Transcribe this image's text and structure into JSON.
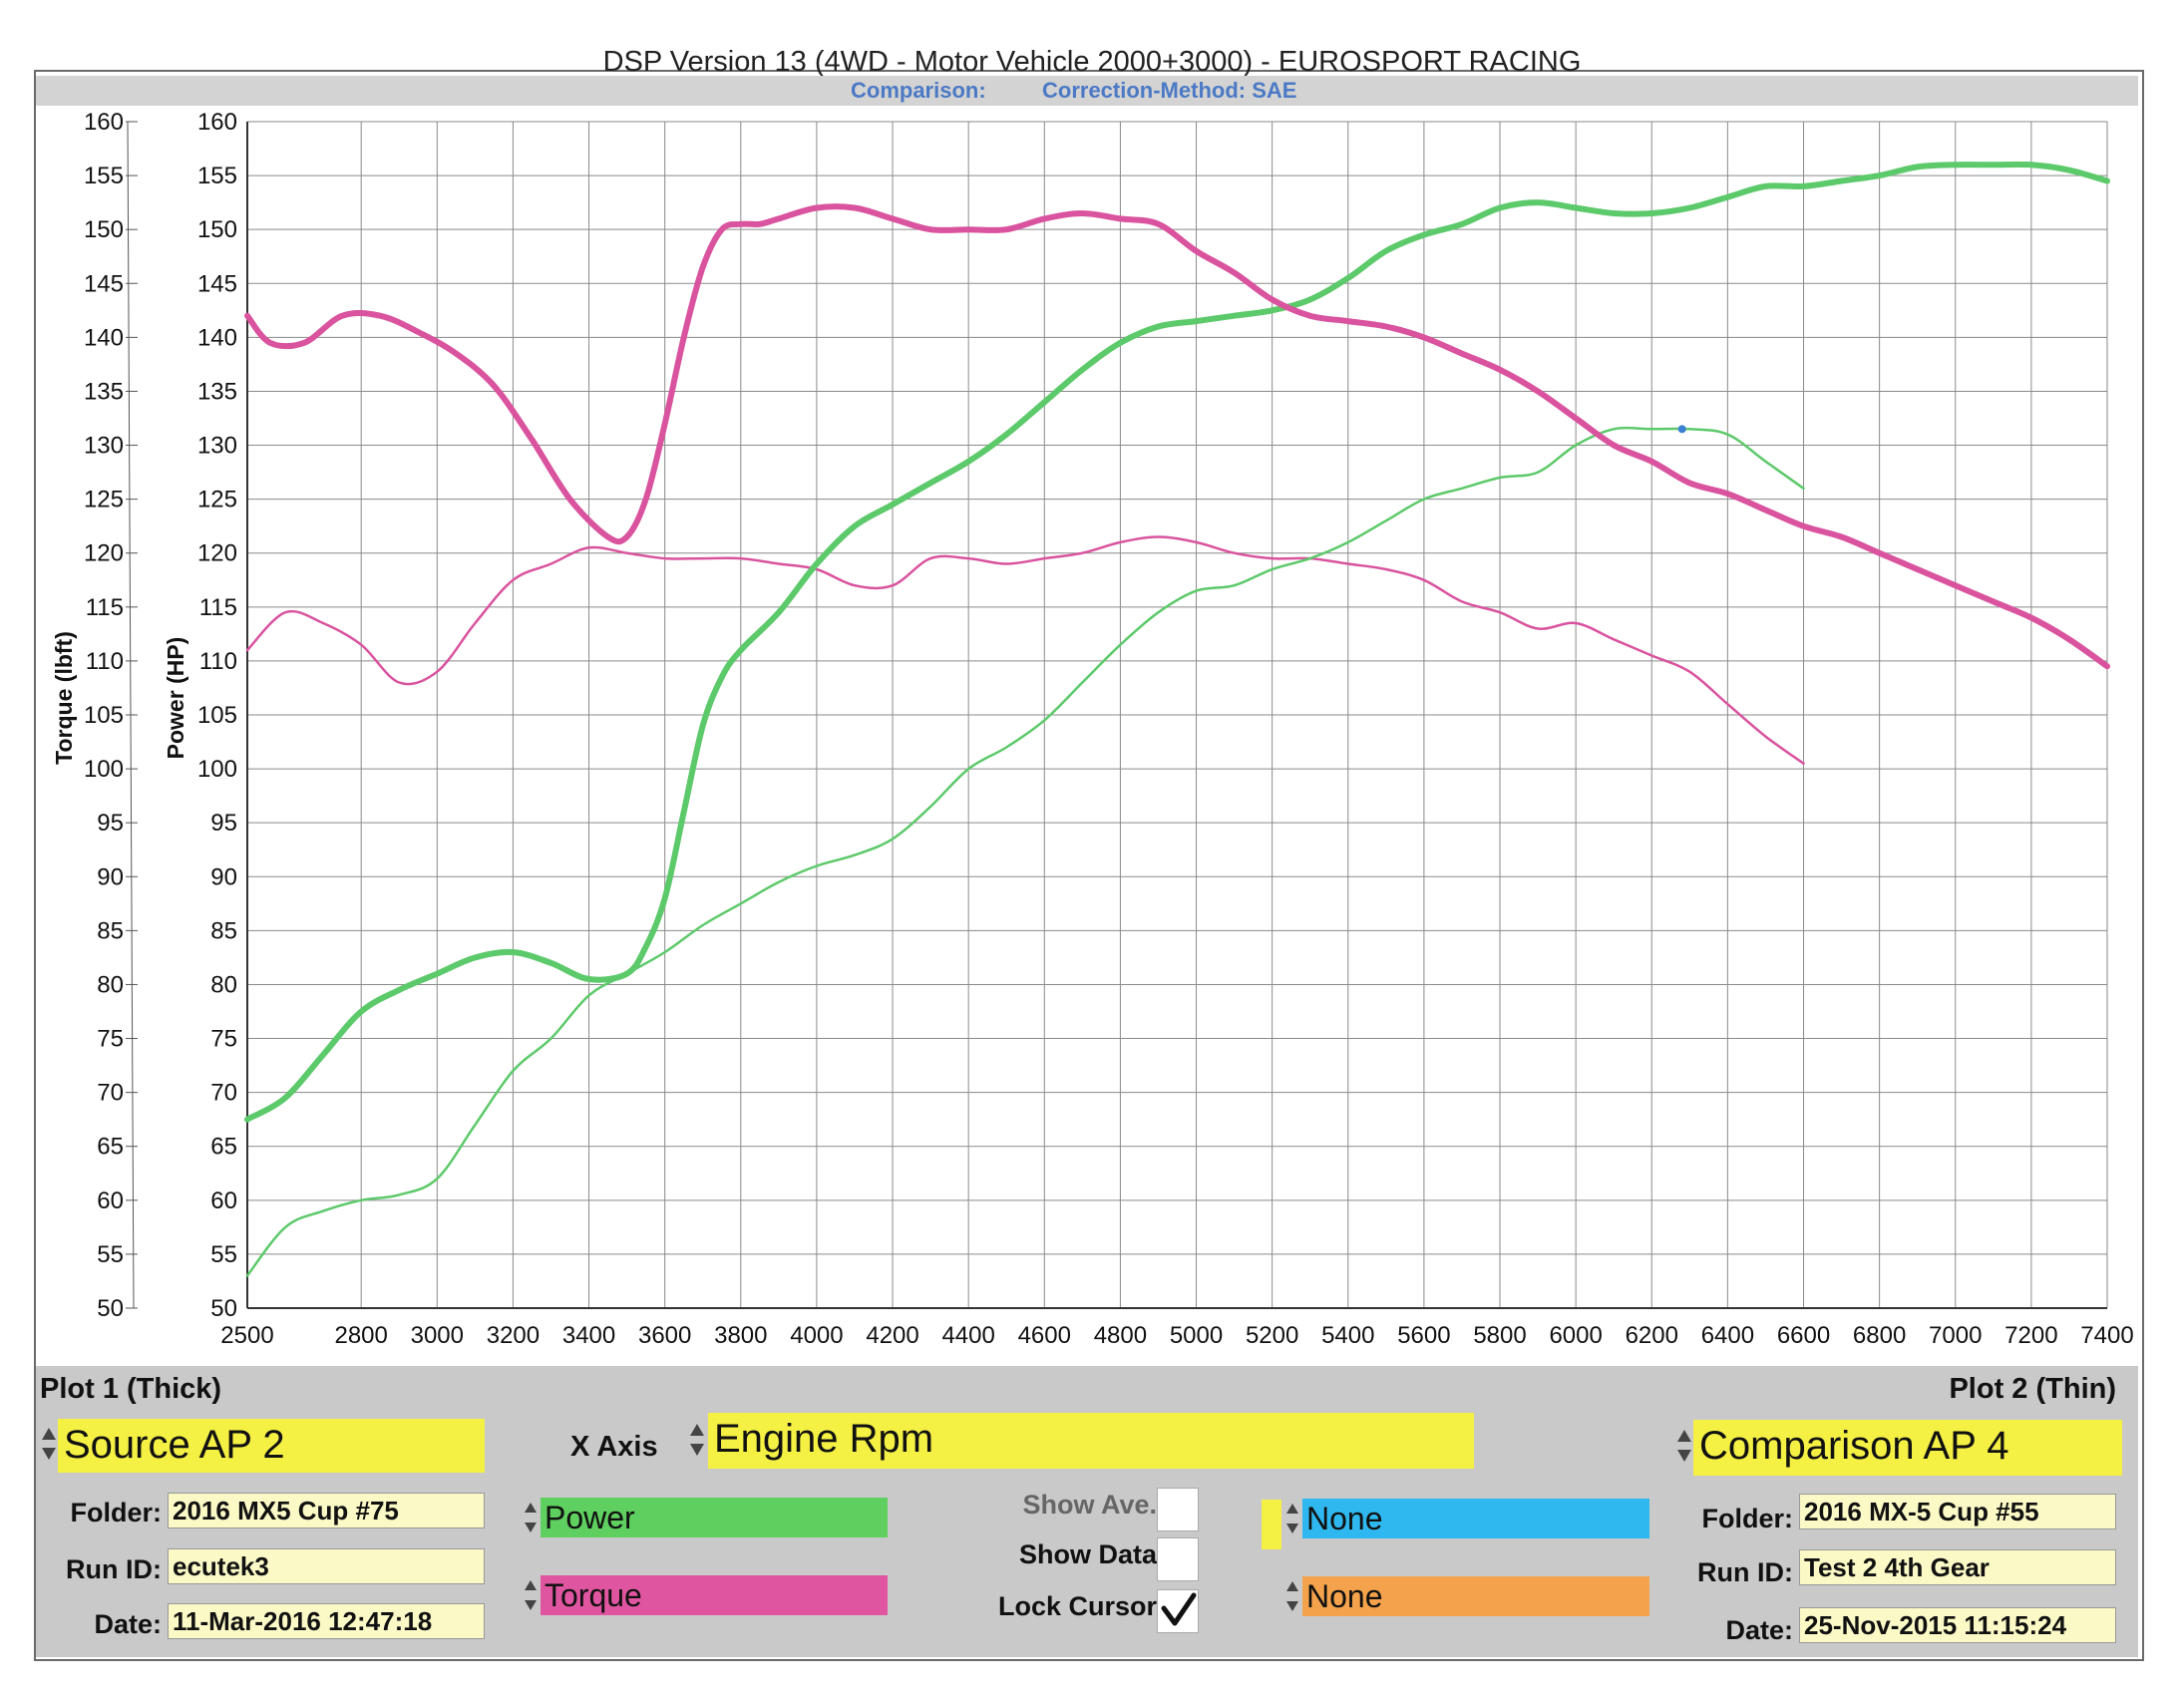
{
  "title": "DSP Version 13 (4WD - Motor Vehicle 2000+3000) - EUROSPORT RACING",
  "subtitle": {
    "comparison_label": "Comparison:",
    "correction_label": "Correction-Method: SAE"
  },
  "colors": {
    "power": "#5cc96a",
    "torque": "#d9539e",
    "channel_power": "#5fcf5f",
    "channel_torque": "#e0559f",
    "channel_none1": "#2fb8ef",
    "channel_none2": "#f4a24b",
    "highlight": "#f4f044",
    "subtitle": "#4b79c5",
    "cursor_dot": "#3b7fd4"
  },
  "chart_data": {
    "type": "line",
    "title": "DSP Version 13 (4WD - Motor Vehicle 2000+3000) - EUROSPORT RACING",
    "xlabel": "Engine Rpm",
    "ylabel_left": "Torque (lbft)",
    "ylabel_right": "Power (HP)",
    "xlim": [
      2500,
      7400
    ],
    "ylim": [
      50,
      160
    ],
    "x_ticks": [
      2500,
      2800,
      3000,
      3200,
      3400,
      3600,
      3800,
      4000,
      4200,
      4400,
      4600,
      4800,
      5000,
      5200,
      5400,
      5600,
      5800,
      6000,
      6200,
      6400,
      6600,
      6800,
      7000,
      7200,
      7400
    ],
    "y_ticks": [
      50,
      55,
      60,
      65,
      70,
      75,
      80,
      85,
      90,
      95,
      100,
      105,
      110,
      115,
      120,
      125,
      130,
      135,
      140,
      145,
      150,
      155,
      160
    ],
    "grid": true,
    "cursor_rpm": 6280,
    "series": [
      {
        "name": "Power",
        "plot": "Plot 1 (Thick)",
        "x": [
          2500,
          2600,
          2700,
          2800,
          2900,
          3000,
          3100,
          3200,
          3300,
          3400,
          3500,
          3550,
          3600,
          3650,
          3700,
          3750,
          3800,
          3900,
          4000,
          4100,
          4200,
          4300,
          4400,
          4500,
          4600,
          4700,
          4800,
          4900,
          5000,
          5100,
          5200,
          5300,
          5400,
          5500,
          5600,
          5700,
          5800,
          5900,
          6000,
          6100,
          6200,
          6300,
          6400,
          6500,
          6600,
          6700,
          6800,
          6900,
          7000,
          7100,
          7200,
          7300,
          7400
        ],
        "y": [
          67.5,
          69.5,
          73.5,
          77.5,
          79.5,
          81.0,
          82.5,
          83.0,
          82.0,
          80.5,
          81.0,
          83.5,
          88.0,
          96.0,
          104.0,
          108.5,
          111.0,
          114.5,
          119.0,
          122.5,
          124.5,
          126.5,
          128.5,
          131.0,
          134.0,
          137.0,
          139.5,
          141.0,
          141.5,
          142.0,
          142.5,
          143.5,
          145.5,
          148.0,
          149.5,
          150.5,
          152.0,
          152.5,
          152.0,
          151.5,
          151.5,
          152.0,
          153.0,
          154.0,
          154.0,
          154.5,
          155.0,
          155.8,
          156.0,
          156.0,
          156.0,
          155.5,
          154.5
        ]
      },
      {
        "name": "Torque",
        "plot": "Plot 1 (Thick)",
        "x": [
          2500,
          2560,
          2650,
          2750,
          2850,
          2950,
          3050,
          3150,
          3250,
          3350,
          3450,
          3500,
          3550,
          3600,
          3650,
          3700,
          3750,
          3800,
          3850,
          3900,
          4000,
          4100,
          4200,
          4300,
          4400,
          4500,
          4600,
          4700,
          4800,
          4900,
          5000,
          5100,
          5200,
          5300,
          5400,
          5500,
          5600,
          5700,
          5800,
          5900,
          6000,
          6100,
          6200,
          6300,
          6400,
          6500,
          6600,
          6700,
          6800,
          6900,
          7000,
          7100,
          7200,
          7300,
          7400
        ],
        "y": [
          142.0,
          139.5,
          139.5,
          142.0,
          142.0,
          140.5,
          138.5,
          135.5,
          130.5,
          125.0,
          121.5,
          121.5,
          125.0,
          132.0,
          140.0,
          146.5,
          150.0,
          150.5,
          150.5,
          151.0,
          152.0,
          152.0,
          151.0,
          150.0,
          150.0,
          150.0,
          151.0,
          151.5,
          151.0,
          150.5,
          148.0,
          146.0,
          143.5,
          142.0,
          141.5,
          141.0,
          140.0,
          138.5,
          137.0,
          135.0,
          132.5,
          130.0,
          128.5,
          126.5,
          125.5,
          124.0,
          122.5,
          121.5,
          120.0,
          118.5,
          117.0,
          115.5,
          114.0,
          112.0,
          109.5
        ]
      },
      {
        "name": "Power",
        "plot": "Plot 2 (Thin)",
        "x": [
          2500,
          2600,
          2700,
          2800,
          2900,
          3000,
          3100,
          3200,
          3300,
          3400,
          3500,
          3600,
          3700,
          3800,
          3900,
          4000,
          4100,
          4200,
          4300,
          4400,
          4500,
          4600,
          4700,
          4800,
          4900,
          5000,
          5100,
          5200,
          5300,
          5400,
          5500,
          5600,
          5700,
          5800,
          5900,
          6000,
          6100,
          6200,
          6300,
          6400,
          6500,
          6600
        ],
        "y": [
          53.0,
          57.5,
          59.0,
          60.0,
          60.5,
          62.0,
          67.0,
          72.0,
          75.0,
          79.0,
          81.0,
          83.0,
          85.5,
          87.5,
          89.5,
          91.0,
          92.0,
          93.5,
          96.5,
          100.0,
          102.0,
          104.5,
          108.0,
          111.5,
          114.5,
          116.5,
          117.0,
          118.5,
          119.5,
          121.0,
          123.0,
          125.0,
          126.0,
          127.0,
          127.5,
          130.0,
          131.5,
          131.5,
          131.5,
          131.0,
          128.5,
          126.0
        ]
      },
      {
        "name": "Torque",
        "plot": "Plot 2 (Thin)",
        "x": [
          2500,
          2600,
          2700,
          2800,
          2900,
          3000,
          3100,
          3200,
          3300,
          3400,
          3500,
          3600,
          3700,
          3800,
          3900,
          4000,
          4100,
          4200,
          4300,
          4400,
          4500,
          4600,
          4700,
          4800,
          4900,
          5000,
          5100,
          5200,
          5300,
          5400,
          5500,
          5600,
          5700,
          5800,
          5900,
          6000,
          6100,
          6200,
          6300,
          6400,
          6500,
          6600
        ],
        "y": [
          111.0,
          114.5,
          113.5,
          111.5,
          108.0,
          109.0,
          113.5,
          117.5,
          119.0,
          120.5,
          120.0,
          119.5,
          119.5,
          119.5,
          119.0,
          118.5,
          117.0,
          117.0,
          119.5,
          119.5,
          119.0,
          119.5,
          120.0,
          121.0,
          121.5,
          121.0,
          120.0,
          119.5,
          119.5,
          119.0,
          118.5,
          117.5,
          115.5,
          114.5,
          113.0,
          113.5,
          112.0,
          110.5,
          109.0,
          106.0,
          103.0,
          100.5
        ]
      }
    ]
  },
  "panel": {
    "plot1_label": "Plot 1 (Thick)",
    "plot2_label": "Plot 2 (Thin)",
    "x_axis_label": "X Axis",
    "x_axis_value": "Engine Rpm",
    "source": {
      "name": "Source AP 2",
      "folder_label": "Folder:",
      "folder": "2016 MX5 Cup #75",
      "runid_label": "Run ID:",
      "runid": "ecutek3",
      "date_label": "Date:",
      "date": "11-Mar-2016 12:47:18"
    },
    "comparison": {
      "name": "Comparison AP 4",
      "folder_label": "Folder:",
      "folder": "2016 MX-5 Cup #55",
      "runid_label": "Run ID:",
      "runid": "Test 2 4th Gear",
      "date_label": "Date:",
      "date": "25-Nov-2015 11:15:24"
    },
    "channels": {
      "ch1": "Power",
      "ch2": "Torque",
      "ch3": "None",
      "ch4": "None"
    },
    "options": {
      "show_ave": "Show Ave.",
      "show_data": "Show Data",
      "lock_cursor": "Lock Cursor",
      "lock_cursor_checked": true
    }
  }
}
